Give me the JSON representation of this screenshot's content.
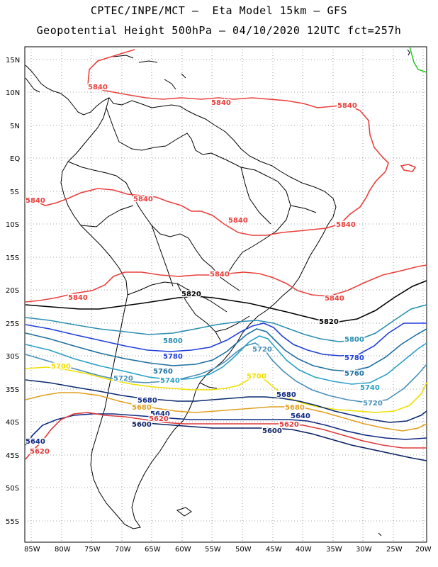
{
  "header": {
    "line1": "CPTEC/INPE/MCT –  Eta Model 15km – GFS",
    "line2": "Geopotential Height 500hPa – 04/10/2020 12UTC fct=257h"
  },
  "axes": {
    "lat_ticks": [
      "15N",
      "10N",
      "5N",
      "EQ",
      "5S",
      "10S",
      "15S",
      "20S",
      "25S",
      "30S",
      "35S",
      "40S",
      "45S",
      "50S",
      "55S"
    ],
    "lon_ticks": [
      "85W",
      "80W",
      "75W",
      "70W",
      "65W",
      "60W",
      "55W",
      "50W",
      "45W",
      "40W",
      "35W",
      "30W",
      "25W",
      "20W"
    ]
  },
  "colors": {
    "c5840": "#e8413d",
    "c5820": "#000000",
    "c5800": "#2a8fb0",
    "c5780": "#1f3fd8",
    "c5760": "#1f6f9f",
    "c5740": "#2aa0c6",
    "c5720": "#4a8fb8",
    "c5700": "#f0e000",
    "c5680": "#e0a020",
    "c5640": "#102a80",
    "c5620": "#e03a3a",
    "c5600": "#0a1f60",
    "green": "#22cc22"
  },
  "contour_labels": [
    {
      "text": "5840",
      "color": "c5840"
    },
    {
      "text": "5840",
      "color": "c5840"
    },
    {
      "text": "5840",
      "color": "c5840"
    },
    {
      "text": "5840",
      "color": "c5840"
    },
    {
      "text": "5840",
      "color": "c5840"
    },
    {
      "text": "5840",
      "color": "c5840"
    },
    {
      "text": "5840",
      "color": "c5840"
    },
    {
      "text": "5840",
      "color": "c5840"
    },
    {
      "text": "5840",
      "color": "c5840"
    },
    {
      "text": "5840",
      "color": "c5840"
    },
    {
      "text": "5820",
      "color": "c5820"
    },
    {
      "text": "5820",
      "color": "c5820"
    },
    {
      "text": "5800",
      "color": "c5800"
    },
    {
      "text": "5800",
      "color": "c5800"
    },
    {
      "text": "5780",
      "color": "c5780"
    },
    {
      "text": "5780",
      "color": "c5780"
    },
    {
      "text": "5760",
      "color": "c5760"
    },
    {
      "text": "5760",
      "color": "c5760"
    },
    {
      "text": "5720",
      "color": "c5720"
    },
    {
      "text": "5720",
      "color": "c5720"
    },
    {
      "text": "5720",
      "color": "c5720"
    },
    {
      "text": "5740",
      "color": "c5740"
    },
    {
      "text": "5740",
      "color": "c5740"
    },
    {
      "text": "5700",
      "color": "c5700"
    },
    {
      "text": "5700",
      "color": "c5700"
    },
    {
      "text": "5680",
      "color": "c5680"
    },
    {
      "text": "5680",
      "color": "c5680"
    },
    {
      "text": "5680",
      "color": "c5640"
    },
    {
      "text": "5680",
      "color": "c5640"
    },
    {
      "text": "5640",
      "color": "c5640"
    },
    {
      "text": "5640",
      "color": "c5640"
    },
    {
      "text": "5640",
      "color": "c5640"
    },
    {
      "text": "5620",
      "color": "c5620"
    },
    {
      "text": "5620",
      "color": "c5620"
    },
    {
      "text": "5620",
      "color": "c5620"
    },
    {
      "text": "5600",
      "color": "c5600"
    },
    {
      "text": "5600",
      "color": "c5600"
    }
  ]
}
